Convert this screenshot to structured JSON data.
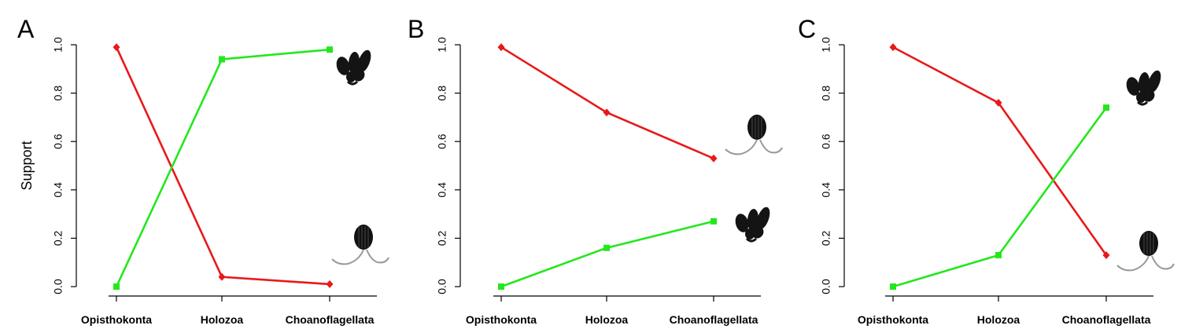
{
  "chart_data": [
    {
      "type": "line",
      "panel_label": "A",
      "categories": [
        "Opisthokonta",
        "Holozoa",
        "Choanoflagellata"
      ],
      "ylabel": "Support",
      "ylim": [
        0,
        1
      ],
      "yticks": [
        "0.0",
        "0.2",
        "0.4",
        "0.6",
        "0.8",
        "1.0"
      ],
      "series": [
        {
          "color": "#e8191b",
          "marker": "diamond",
          "values": [
            0.99,
            0.04,
            0.01
          ]
        },
        {
          "color": "#22e81c",
          "marker": "square",
          "values": [
            0.0,
            0.94,
            0.98
          ]
        }
      ],
      "icons": [
        "choanoflagellate-colony-icon",
        "choanoflagellate-cell-icon"
      ]
    },
    {
      "type": "line",
      "panel_label": "B",
      "categories": [
        "Opisthokonta",
        "Holozoa",
        "Choanoflagellata"
      ],
      "ylabel": "",
      "ylim": [
        0,
        1
      ],
      "yticks": [
        "0.0",
        "0.2",
        "0.4",
        "0.6",
        "0.8",
        "1.0"
      ],
      "series": [
        {
          "color": "#e8191b",
          "marker": "diamond",
          "values": [
            0.99,
            0.72,
            0.53
          ]
        },
        {
          "color": "#22e81c",
          "marker": "square",
          "values": [
            0.0,
            0.16,
            0.27
          ]
        }
      ],
      "icons": [
        "choanoflagellate-cell-icon",
        "choanoflagellate-colony-icon"
      ]
    },
    {
      "type": "line",
      "panel_label": "C",
      "categories": [
        "Opisthokonta",
        "Holozoa",
        "Choanoflagellata"
      ],
      "ylabel": "",
      "ylim": [
        0,
        1
      ],
      "yticks": [
        "0.0",
        "0.2",
        "0.4",
        "0.6",
        "0.8",
        "1.0"
      ],
      "series": [
        {
          "color": "#e8191b",
          "marker": "diamond",
          "values": [
            0.99,
            0.76,
            0.13
          ]
        },
        {
          "color": "#22e81c",
          "marker": "square",
          "values": [
            0.0,
            0.13,
            0.74
          ]
        }
      ],
      "icons": [
        "choanoflagellate-colony-icon",
        "choanoflagellate-cell-icon"
      ]
    }
  ]
}
